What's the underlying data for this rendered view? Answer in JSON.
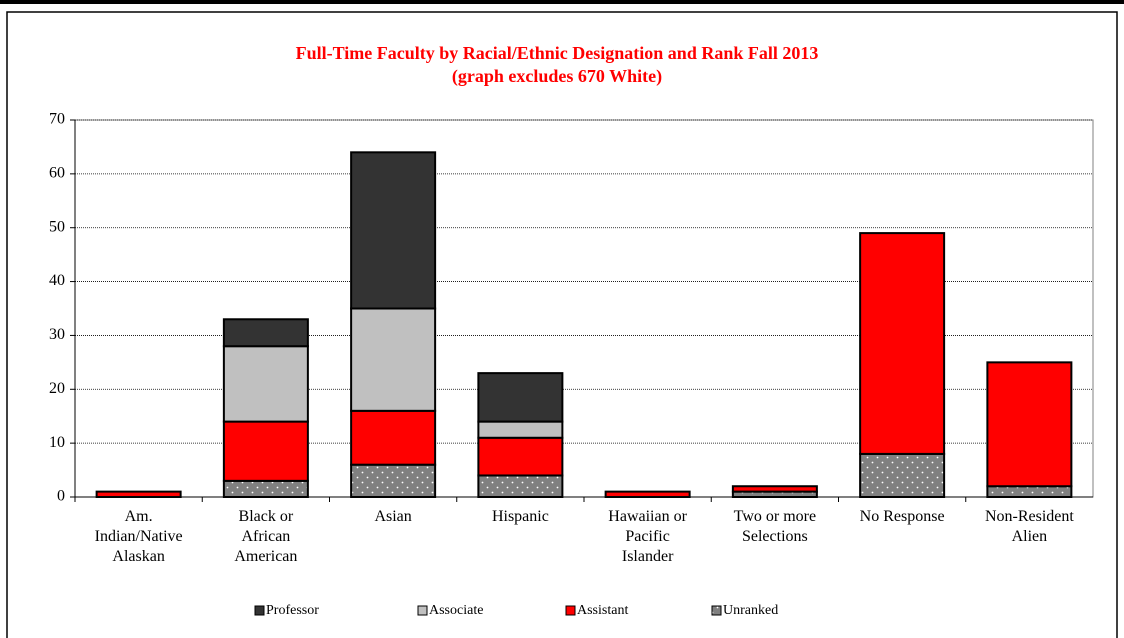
{
  "chart_data": {
    "type": "stacked_bar",
    "title": "Full-Time Faculty by Racial/Ethnic Designation and Rank Fall 2013",
    "subtitle": "(graph excludes 670 White)",
    "categories": [
      "Am. Indian/Native Alaskan",
      "Black or African American",
      "Asian",
      "Hispanic",
      "Hawaiian or Pacific Islander",
      "Two or more Selections",
      "No Response",
      "Non-Resident Alien"
    ],
    "series": [
      {
        "name": "Unranked",
        "color": "#808080",
        "values": [
          0,
          3,
          6,
          4,
          0,
          1,
          8,
          2
        ]
      },
      {
        "name": "Assistant",
        "color": "#ff0000",
        "values": [
          1,
          11,
          10,
          7,
          1,
          1,
          41,
          23
        ]
      },
      {
        "name": "Associate",
        "color": "#c0c0c0",
        "values": [
          0,
          14,
          19,
          3,
          0,
          0,
          0,
          0
        ]
      },
      {
        "name": "Professor",
        "color": "#333333",
        "values": [
          0,
          5,
          29,
          9,
          0,
          0,
          0,
          0
        ]
      }
    ],
    "legend_order": [
      "Professor",
      "Associate",
      "Assistant",
      "Unranked"
    ],
    "ylim": [
      0,
      70
    ],
    "yticks": [
      0,
      10,
      20,
      30,
      40,
      50,
      60,
      70
    ],
    "grid": true,
    "legend": "bottom"
  }
}
